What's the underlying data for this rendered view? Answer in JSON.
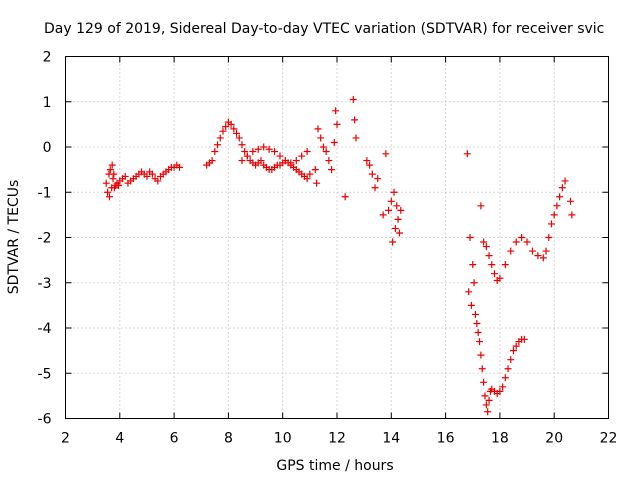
{
  "chart_data": {
    "type": "scatter",
    "title": "Day 129 of 2019, Sidereal Day-to-day VTEC variation (SDTVAR) for receiver svic",
    "xlabel": "GPS time / hours",
    "ylabel": "SDTVAR / TECUs",
    "xlim": [
      2,
      22
    ],
    "ylim": [
      -6,
      2
    ],
    "xticks": [
      2,
      4,
      6,
      8,
      10,
      12,
      14,
      16,
      18,
      20,
      22
    ],
    "yticks": [
      -6,
      -5,
      -4,
      -3,
      -2,
      -1,
      0,
      1,
      2
    ],
    "grid": true,
    "marker": "+",
    "color": "#ee0000",
    "series": [
      {
        "name": "SDTVAR",
        "x": [
          3.5,
          3.55,
          3.6,
          3.62,
          3.65,
          3.7,
          3.72,
          3.75,
          3.78,
          3.8,
          3.85,
          3.9,
          3.95,
          4.0,
          4.1,
          4.2,
          4.3,
          4.4,
          4.5,
          4.6,
          4.7,
          4.8,
          4.9,
          5.0,
          5.1,
          5.2,
          5.3,
          5.4,
          5.5,
          5.6,
          5.7,
          5.8,
          5.9,
          6.0,
          6.1,
          6.2,
          7.2,
          7.3,
          7.4,
          7.5,
          7.6,
          7.7,
          7.8,
          7.9,
          8.0,
          8.1,
          8.2,
          8.3,
          8.4,
          8.5,
          8.6,
          8.7,
          8.8,
          8.9,
          9.0,
          9.1,
          9.2,
          9.3,
          9.4,
          9.5,
          9.6,
          9.7,
          9.8,
          9.9,
          10.0,
          10.1,
          10.2,
          10.3,
          10.4,
          10.5,
          10.6,
          10.7,
          10.8,
          10.9,
          11.0,
          8.5,
          8.7,
          8.9,
          9.1,
          9.3,
          9.5,
          9.7,
          9.9,
          10.1,
          10.3,
          10.5,
          10.7,
          10.9,
          11.2,
          11.25,
          11.3,
          11.4,
          11.5,
          11.6,
          11.7,
          11.8,
          11.9,
          11.95,
          12.0,
          12.3,
          12.6,
          12.65,
          12.7,
          13.1,
          13.2,
          13.3,
          13.4,
          13.5,
          13.7,
          13.8,
          13.9,
          14.0,
          14.05,
          14.1,
          14.15,
          14.2,
          14.25,
          14.3,
          14.35,
          16.8,
          16.85,
          16.9,
          16.95,
          17.0,
          17.05,
          17.1,
          17.15,
          17.2,
          17.25,
          17.3,
          17.35,
          17.4,
          17.45,
          17.5,
          17.55,
          17.6,
          17.65,
          17.7,
          17.8,
          17.9,
          18.0,
          18.1,
          18.2,
          18.3,
          18.4,
          18.5,
          18.6,
          18.7,
          18.8,
          18.9,
          17.3,
          17.4,
          17.5,
          17.6,
          17.7,
          17.8,
          17.9,
          18.0,
          18.2,
          18.4,
          18.6,
          18.8,
          19.0,
          19.2,
          19.4,
          19.6,
          19.7,
          19.8,
          19.9,
          20.0,
          20.1,
          20.2,
          20.3,
          20.4,
          20.6,
          20.65
        ],
        "y": [
          -0.8,
          -1.0,
          -0.6,
          -1.1,
          -0.5,
          -0.9,
          -0.4,
          -0.7,
          -0.6,
          -0.9,
          -0.85,
          -0.8,
          -0.85,
          -0.75,
          -0.7,
          -0.65,
          -0.8,
          -0.75,
          -0.7,
          -0.65,
          -0.6,
          -0.55,
          -0.6,
          -0.65,
          -0.55,
          -0.6,
          -0.7,
          -0.75,
          -0.65,
          -0.6,
          -0.55,
          -0.5,
          -0.45,
          -0.45,
          -0.4,
          -0.45,
          -0.4,
          -0.35,
          -0.3,
          -0.1,
          0.05,
          0.2,
          0.35,
          0.45,
          0.55,
          0.5,
          0.4,
          0.3,
          0.2,
          0.05,
          -0.1,
          -0.2,
          -0.3,
          -0.35,
          -0.4,
          -0.35,
          -0.3,
          -0.4,
          -0.45,
          -0.5,
          -0.5,
          -0.45,
          -0.4,
          -0.4,
          -0.35,
          -0.3,
          -0.35,
          -0.4,
          -0.45,
          -0.5,
          -0.55,
          -0.6,
          -0.65,
          -0.7,
          -0.6,
          -0.3,
          -0.2,
          -0.1,
          -0.05,
          0.0,
          -0.05,
          -0.1,
          -0.2,
          -0.3,
          -0.35,
          -0.3,
          -0.2,
          -0.1,
          -0.5,
          -0.8,
          0.4,
          0.2,
          0.0,
          -0.1,
          -0.3,
          -0.5,
          0.1,
          0.8,
          0.5,
          -1.1,
          1.05,
          0.6,
          0.2,
          -0.3,
          -0.4,
          -0.6,
          -0.9,
          -0.7,
          -1.5,
          -0.15,
          -1.4,
          -1.2,
          -2.1,
          -1.0,
          -1.8,
          -1.3,
          -1.6,
          -1.9,
          -1.4,
          -0.15,
          -3.2,
          -2.0,
          -3.5,
          -2.6,
          -3.0,
          -3.7,
          -3.9,
          -4.1,
          -4.3,
          -4.6,
          -4.9,
          -5.2,
          -5.5,
          -5.7,
          -5.85,
          -5.6,
          -5.4,
          -5.35,
          -5.4,
          -5.45,
          -5.4,
          -5.3,
          -5.1,
          -4.9,
          -4.7,
          -4.5,
          -4.4,
          -4.3,
          -4.25,
          -4.25,
          -1.3,
          -2.1,
          -2.2,
          -2.4,
          -2.6,
          -2.8,
          -2.95,
          -2.9,
          -2.6,
          -2.3,
          -2.1,
          -2.0,
          -2.1,
          -2.3,
          -2.4,
          -2.45,
          -2.3,
          -2.0,
          -1.7,
          -1.5,
          -1.3,
          -1.1,
          -0.9,
          -0.75,
          -1.2,
          -1.5
        ]
      }
    ]
  }
}
